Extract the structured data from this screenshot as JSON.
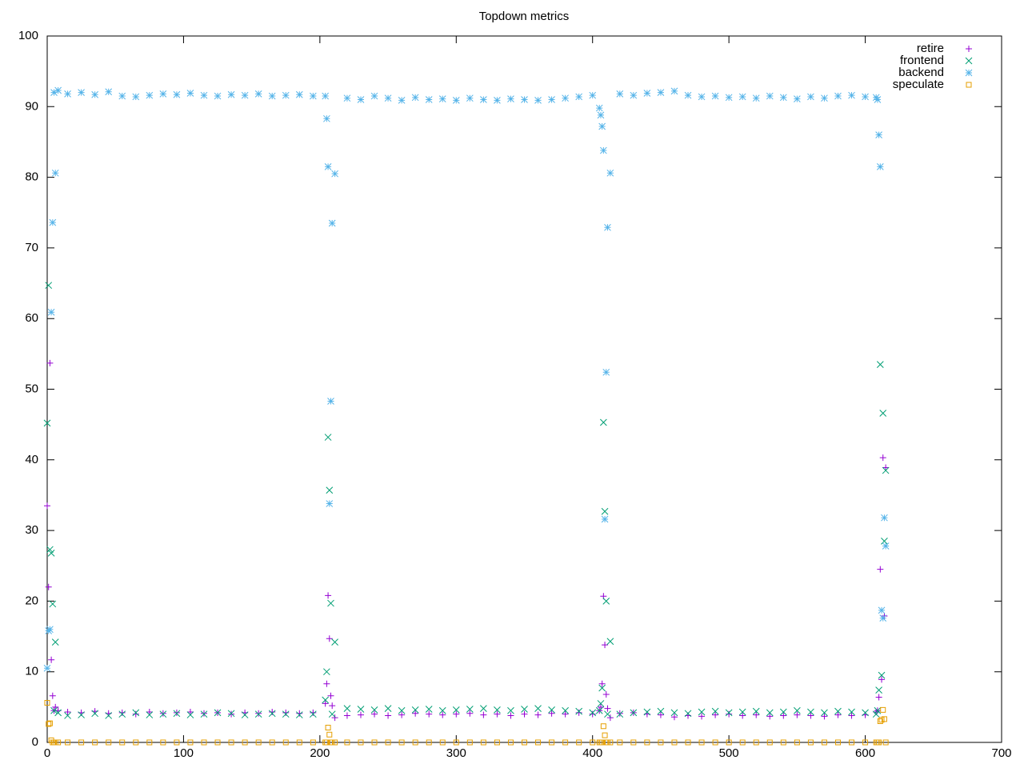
{
  "chart_data": {
    "type": "scatter",
    "title": "Topdown metrics",
    "x": [
      0,
      1,
      2,
      3,
      4,
      5,
      6,
      8,
      15,
      25,
      35,
      45,
      55,
      65,
      75,
      85,
      95,
      105,
      115,
      125,
      135,
      145,
      155,
      165,
      175,
      185,
      195,
      204,
      205,
      206,
      207,
      208,
      209,
      211,
      220,
      230,
      240,
      250,
      260,
      270,
      280,
      290,
      300,
      310,
      320,
      330,
      340,
      350,
      360,
      370,
      380,
      390,
      400,
      405,
      406,
      407,
      408,
      409,
      410,
      411,
      413,
      420,
      430,
      440,
      450,
      460,
      470,
      480,
      490,
      500,
      510,
      520,
      530,
      540,
      550,
      560,
      570,
      580,
      590,
      600,
      608,
      609,
      610,
      611,
      612,
      613,
      614,
      615
    ],
    "series": [
      {
        "name": "retire",
        "color": "#9400d3",
        "marker": "plus",
        "values": [
          33.5,
          22,
          53.7,
          11.7,
          6.6,
          4.5,
          5.0,
          4.5,
          4.3,
          4.2,
          4.4,
          4.1,
          4.2,
          4.0,
          4.3,
          4.1,
          4.2,
          4.3,
          4.1,
          4.2,
          4.0,
          4.2,
          4.1,
          4.3,
          4.2,
          4.1,
          4.2,
          5.5,
          8.3,
          20.8,
          14.7,
          6.6,
          5.2,
          3.5,
          3.8,
          3.9,
          4.0,
          3.8,
          3.9,
          4.1,
          4.0,
          3.9,
          4.0,
          4.1,
          3.9,
          4.0,
          3.8,
          4.0,
          3.9,
          4.1,
          4.0,
          4.2,
          4.0,
          4.5,
          5.0,
          8.3,
          20.7,
          13.8,
          6.8,
          4.8,
          3.5,
          4.1,
          4.2,
          4.0,
          3.9,
          3.6,
          3.8,
          3.7,
          3.9,
          4.0,
          3.8,
          3.9,
          3.7,
          3.8,
          3.9,
          3.8,
          3.7,
          3.9,
          3.8,
          3.9,
          4.3,
          4.5,
          6.4,
          24.5,
          8.9,
          40.3,
          17.9,
          38.9
        ]
      },
      {
        "name": "frontend",
        "color": "#009e73",
        "marker": "cross",
        "values": [
          45.2,
          64.7,
          27.3,
          26.8,
          19.6,
          4.5,
          14.2,
          4.2,
          3.8,
          3.9,
          4.1,
          3.8,
          4.0,
          4.2,
          3.9,
          4.0,
          4.1,
          3.9,
          4.0,
          4.2,
          4.1,
          3.9,
          4.0,
          4.1,
          4.0,
          3.9,
          4.0,
          6.0,
          10.0,
          43.2,
          35.7,
          19.7,
          4.0,
          14.2,
          4.8,
          4.7,
          4.6,
          4.8,
          4.5,
          4.6,
          4.7,
          4.5,
          4.6,
          4.7,
          4.8,
          4.6,
          4.5,
          4.7,
          4.8,
          4.6,
          4.5,
          4.4,
          4.2,
          4.5,
          5.5,
          7.7,
          45.3,
          32.7,
          20.0,
          4.0,
          14.3,
          4.0,
          4.2,
          4.3,
          4.4,
          4.2,
          4.1,
          4.3,
          4.4,
          4.2,
          4.3,
          4.4,
          4.2,
          4.3,
          4.5,
          4.3,
          4.2,
          4.4,
          4.3,
          4.2,
          4.0,
          4.5,
          7.4,
          53.5,
          9.5,
          46.6,
          28.5,
          38.5
        ]
      },
      {
        "name": "backend",
        "color": "#56b4e9",
        "marker": "star",
        "values": [
          10.5,
          15.8,
          16,
          60.9,
          73.6,
          92,
          80.6,
          92.3,
          91.8,
          92.0,
          91.7,
          92.1,
          91.5,
          91.4,
          91.6,
          91.8,
          91.7,
          91.9,
          91.6,
          91.5,
          91.7,
          91.6,
          91.8,
          91.5,
          91.6,
          91.7,
          91.5,
          91.5,
          88.3,
          81.5,
          33.8,
          48.3,
          73.5,
          80.5,
          91.2,
          91.0,
          91.5,
          91.2,
          90.9,
          91.3,
          91.0,
          91.1,
          90.9,
          91.2,
          91.0,
          90.9,
          91.1,
          91.0,
          90.9,
          91.0,
          91.2,
          91.4,
          91.6,
          89.8,
          88.8,
          87.2,
          83.8,
          31.6,
          52.4,
          72.9,
          80.6,
          91.8,
          91.6,
          91.9,
          92.0,
          92.2,
          91.6,
          91.4,
          91.5,
          91.3,
          91.4,
          91.2,
          91.5,
          91.3,
          91.1,
          91.4,
          91.2,
          91.5,
          91.6,
          91.4,
          91.3,
          91.0,
          86.0,
          81.5,
          18.7,
          17.6,
          31.8,
          27.8
        ]
      },
      {
        "name": "speculate",
        "color": "#e69f00",
        "marker": "square",
        "values": [
          5.6,
          2.6,
          2.7,
          0.3,
          0,
          0,
          0,
          0,
          0,
          0,
          0,
          0,
          0,
          0,
          0,
          0,
          0,
          0,
          0,
          0,
          0,
          0,
          0,
          0,
          0,
          0,
          0,
          0,
          0,
          2.1,
          1.1,
          0,
          0,
          0,
          0,
          0,
          0,
          0,
          0,
          0,
          0,
          0,
          0,
          0,
          0,
          0,
          0,
          0,
          0,
          0,
          0,
          0,
          0,
          0,
          0,
          0,
          2.3,
          1.0,
          0,
          0,
          0,
          0,
          0,
          0,
          0,
          0,
          0,
          0,
          0,
          0,
          0,
          0,
          0,
          0,
          0,
          0,
          0,
          0,
          0,
          0,
          0,
          0,
          0,
          3.0,
          3.2,
          4.6,
          3.3,
          0
        ]
      }
    ],
    "xlim": [
      0,
      700
    ],
    "xticks": [
      0,
      100,
      200,
      300,
      400,
      500,
      600,
      700
    ],
    "ylim": [
      0,
      100
    ],
    "yticks": [
      0,
      10,
      20,
      30,
      40,
      50,
      60,
      70,
      80,
      90,
      100
    ],
    "legend": "top right",
    "grid": false
  }
}
